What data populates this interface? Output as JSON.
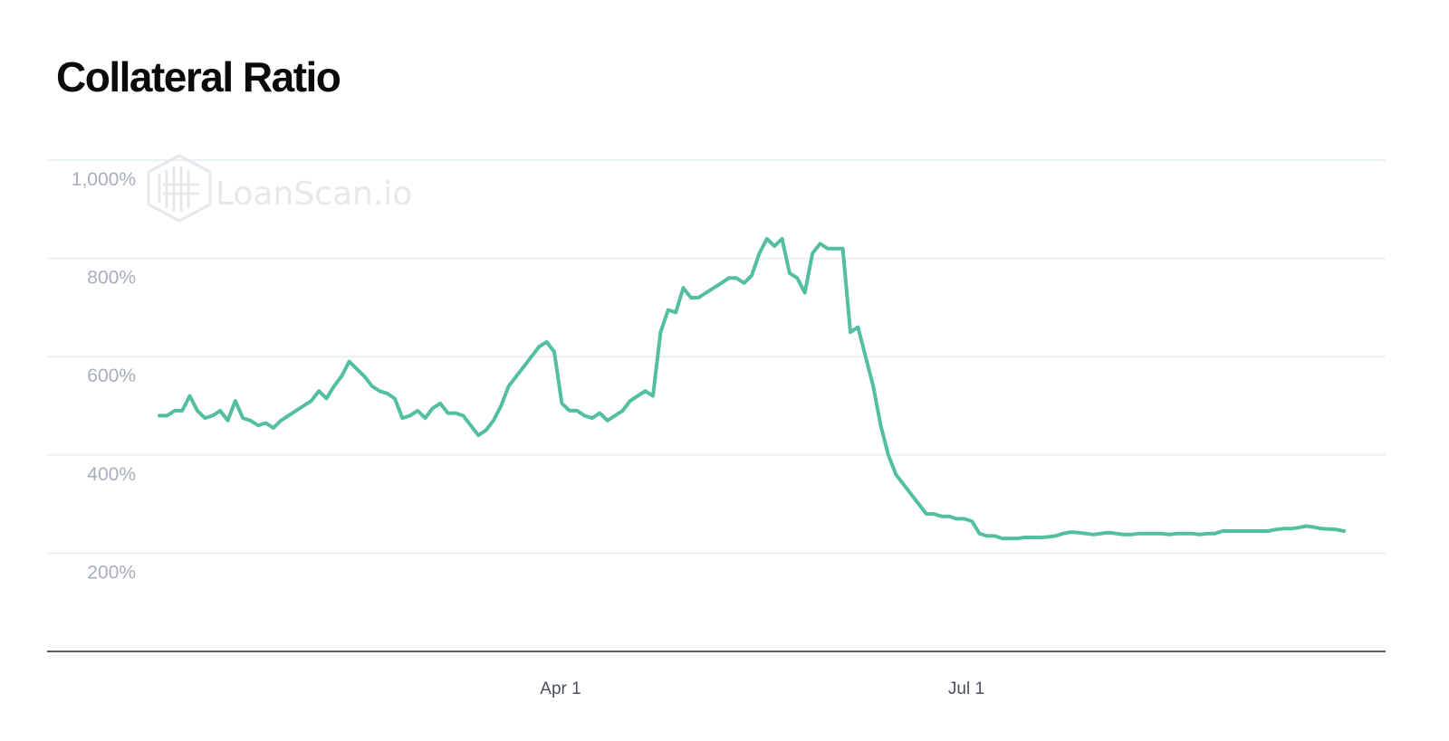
{
  "page_title": "Collateral Ratio",
  "watermark": {
    "text": "LoanScan.io",
    "icon": "loanscan-logo-icon"
  },
  "colors": {
    "line": "#52bfa0",
    "grid": "#e8f1f6",
    "axis": "#5a5f6a",
    "tick_y": "#a9aebb",
    "tick_x": "#4a4f5c",
    "watermark": "#e6e8ec"
  },
  "chart_data": {
    "type": "line",
    "title": "Collateral Ratio",
    "xlabel": "",
    "ylabel": "",
    "x_ticks": [
      "Apr 1",
      "Jul 1"
    ],
    "y_ticks": [
      "1,000%",
      "800%",
      "600%",
      "400%",
      "200%"
    ],
    "y_tick_values": [
      1000,
      800,
      600,
      400,
      200
    ],
    "ylim": [
      0,
      1000
    ],
    "grid": true,
    "legend": "none",
    "series": [
      {
        "values": [
          480,
          480,
          490,
          490,
          520,
          490,
          475,
          480,
          490,
          470,
          510,
          475,
          470,
          460,
          465,
          455,
          470,
          480,
          490,
          500,
          510,
          530,
          515,
          540,
          560,
          590,
          575,
          560,
          540,
          530,
          525,
          515,
          475,
          480,
          490,
          475,
          495,
          505,
          485,
          485,
          480,
          460,
          440,
          450,
          470,
          500,
          540,
          560,
          580,
          600,
          620,
          630,
          610,
          505,
          490,
          490,
          480,
          475,
          485,
          470,
          480,
          490,
          510,
          520,
          530,
          520,
          650,
          695,
          690,
          740,
          720,
          720,
          730,
          740,
          750,
          760,
          760,
          750,
          765,
          810,
          840,
          825,
          840,
          770,
          760,
          730,
          810,
          830,
          820,
          820,
          820,
          650,
          660,
          600,
          540,
          460,
          400,
          360,
          340,
          320,
          300,
          280,
          280,
          275,
          275,
          270,
          270,
          265,
          240,
          235,
          235,
          230,
          230,
          230,
          232,
          232,
          232,
          233,
          235,
          240,
          243,
          242,
          240,
          238,
          240,
          242,
          240,
          238,
          238,
          240,
          240,
          240,
          240,
          238,
          240,
          240,
          240,
          238,
          240,
          240,
          245,
          245,
          245,
          245,
          245,
          245,
          245,
          248,
          250,
          250,
          252,
          255,
          253,
          250,
          249,
          248,
          245
        ]
      }
    ]
  }
}
